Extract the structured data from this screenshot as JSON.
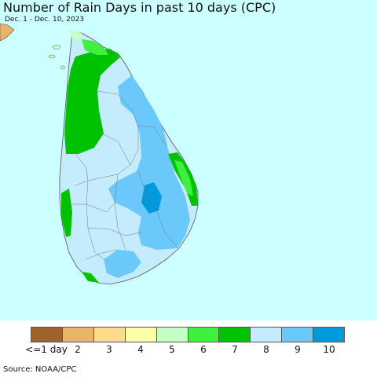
{
  "title": "Number of Rain Days in past 10 days (CPC)",
  "subtitle": "Dec. 1 - Dec. 10, 2023",
  "source": "Source: NOAA/CPC",
  "colors": {
    "ocean": "#ccffff",
    "land_base": "#c5ecfc",
    "mainland": "#e8b46a",
    "boundary": "#777777"
  },
  "legend": {
    "items": [
      {
        "label": "<=1 day",
        "color": "#a0622d"
      },
      {
        "label": "2",
        "color": "#e8b46a"
      },
      {
        "label": "3",
        "color": "#fedc8b"
      },
      {
        "label": "4",
        "color": "#ffffaa"
      },
      {
        "label": "5",
        "color": "#c5ffc5"
      },
      {
        "label": "6",
        "color": "#3ff03f"
      },
      {
        "label": "7",
        "color": "#00c200"
      },
      {
        "label": "8",
        "color": "#c5ecfc"
      },
      {
        "label": "9",
        "color": "#6ac8fa"
      },
      {
        "label": "10",
        "color": "#0099dd"
      }
    ]
  }
}
